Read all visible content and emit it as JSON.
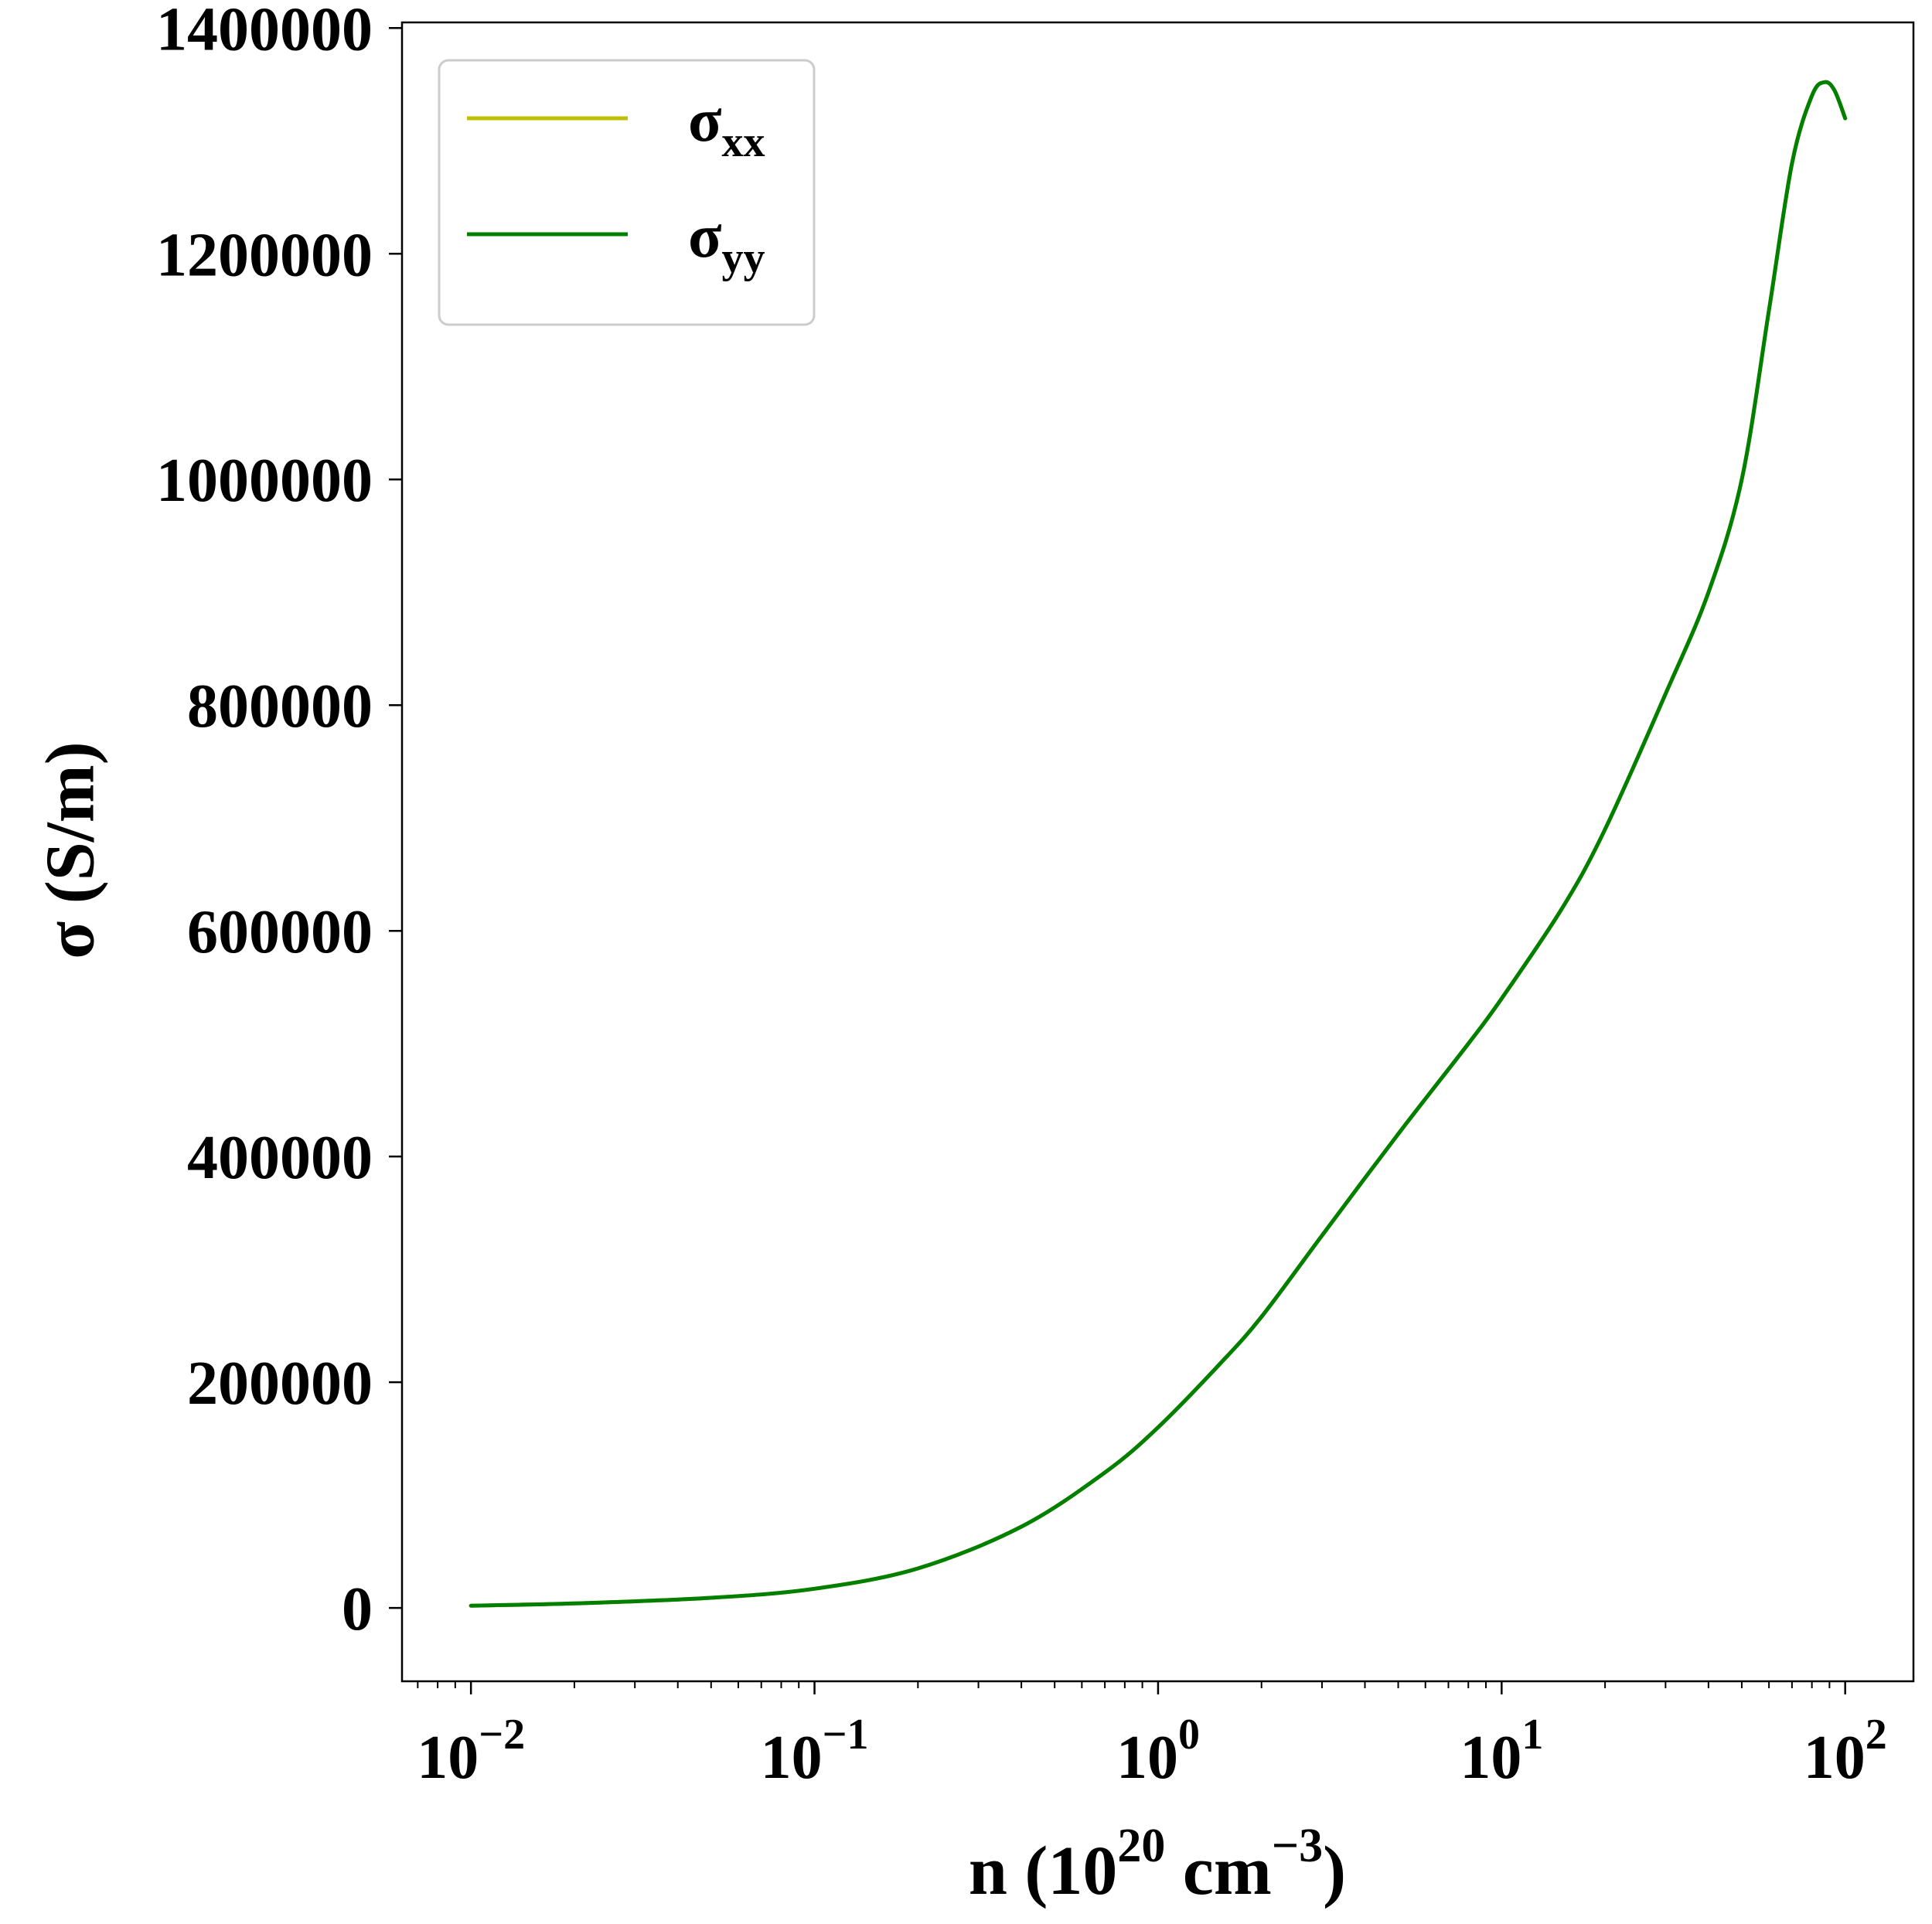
{
  "chart_data": {
    "type": "line",
    "x_scale": "log",
    "xlim": [
      0.0063,
      158
    ],
    "ylim": [
      -65000,
      1405000
    ],
    "grid": false,
    "legend_position": "top-left",
    "x_axis": {
      "label_base": "n (10",
      "label_exp": "20",
      "label_mid": " cm",
      "label_exp2": "−3",
      "label_end": ")",
      "ticks": [
        {
          "value": 0.01,
          "base": "10",
          "exp": "−2"
        },
        {
          "value": 0.1,
          "base": "10",
          "exp": "−1"
        },
        {
          "value": 1,
          "base": "10",
          "exp": "0"
        },
        {
          "value": 10,
          "base": "10",
          "exp": "1"
        },
        {
          "value": 100,
          "base": "10",
          "exp": "2"
        }
      ]
    },
    "y_axis": {
      "label": "σ (S/m)",
      "ticks": [
        {
          "value": 0,
          "label": "0"
        },
        {
          "value": 200000,
          "label": "200000"
        },
        {
          "value": 400000,
          "label": "400000"
        },
        {
          "value": 600000,
          "label": "600000"
        },
        {
          "value": 800000,
          "label": "800000"
        },
        {
          "value": 1000000,
          "label": "1000000"
        },
        {
          "value": 1200000,
          "label": "1200000"
        },
        {
          "value": 1400000,
          "label": "1400000"
        }
      ]
    },
    "series": [
      {
        "name_base": "σ",
        "name_sub": "xx",
        "color": "#bfbf00",
        "x": [
          0.01,
          0.02,
          0.05,
          0.1,
          0.2,
          0.4,
          0.7,
          1,
          1.5,
          2,
          3,
          5,
          8,
          10,
          15,
          20,
          30,
          40,
          50,
          60,
          70,
          80,
          87,
          93,
          100
        ],
        "y": [
          2000,
          4000,
          9000,
          17000,
          35000,
          72000,
          120000,
          160000,
          215000,
          258000,
          330000,
          420000,
          500000,
          540000,
          620000,
          690000,
          810000,
          900000,
          1000000,
          1150000,
          1280000,
          1340000,
          1352000,
          1345000,
          1320000
        ]
      },
      {
        "name_base": "σ",
        "name_sub": "yy",
        "color": "#007f00",
        "x": [
          0.01,
          0.02,
          0.05,
          0.1,
          0.2,
          0.4,
          0.7,
          1,
          1.5,
          2,
          3,
          5,
          8,
          10,
          15,
          20,
          30,
          40,
          50,
          60,
          70,
          80,
          87,
          93,
          100
        ],
        "y": [
          2000,
          4000,
          9000,
          17000,
          35000,
          72000,
          120000,
          160000,
          215000,
          258000,
          330000,
          420000,
          500000,
          540000,
          620000,
          690000,
          810000,
          900000,
          1000000,
          1150000,
          1280000,
          1340000,
          1352000,
          1345000,
          1320000
        ]
      }
    ]
  }
}
